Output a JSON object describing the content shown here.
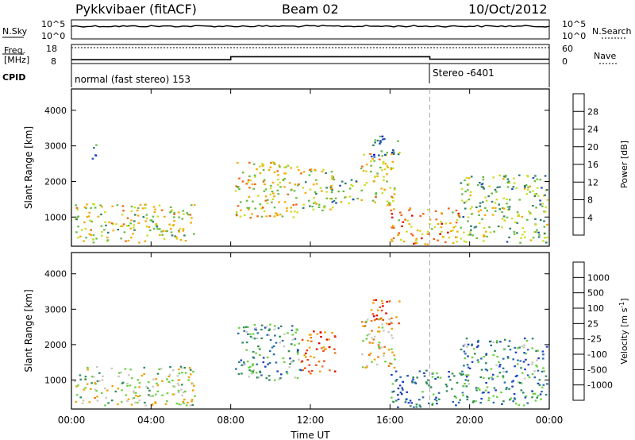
{
  "header": {
    "station": "Pykkvibaer (fitACF)",
    "beam": "Beam 02",
    "date": "10/Oct/2012"
  },
  "aux": {
    "nsky_label": "N.Sky",
    "nsearch_label": "N.Search",
    "freq_label_line1": "Freq.",
    "freq_label_line2": "[MHz]",
    "nave_label": "Nave",
    "cpid_label": "CPID",
    "noise_ticks": [
      "10^5",
      "10^0"
    ],
    "freq_ticks": [
      "18",
      "8"
    ],
    "nave_ticks": [
      "60",
      "0"
    ],
    "cpid_segments": [
      {
        "label": "normal (fast stereo) 153",
        "start_hour": 0
      },
      {
        "label": "Stereo -6401",
        "start_hour": 18
      }
    ],
    "freq_steps_mhz": [
      {
        "from": 0,
        "to": 8,
        "value": 10.0
      },
      {
        "from": 8,
        "to": 18,
        "value": 11.6
      },
      {
        "from": 18,
        "to": 24,
        "value": 10.3
      }
    ],
    "nave_dotted_level": 50
  },
  "chart_data": [
    {
      "type": "heatmap",
      "parameter": "Power",
      "ylabel": "Slant Range [km]",
      "xlabel": "Time UT",
      "x_ticks": [
        "00:00",
        "04:00",
        "08:00",
        "12:00",
        "16:00",
        "20:00",
        "00:00"
      ],
      "x_range_hours": [
        0,
        24
      ],
      "y_ticks": [
        "4000",
        "3000",
        "2000",
        "1000"
      ],
      "y_tick_values": [
        4000,
        3000,
        2000,
        1000
      ],
      "ylim": [
        180,
        4600
      ],
      "colorbar_label": "Power [dB]",
      "colorbar_ticks": [
        "28",
        "24",
        "20",
        "16",
        "12",
        "8",
        "4"
      ],
      "colorbar_colors": [
        "#0000ff",
        "#1f4fb4",
        "#2e7d6a",
        "#66bb44",
        "#ccdd22",
        "#f5a800",
        "#f06010",
        "#e00000"
      ],
      "scatter_regions": [
        {
          "t": [
            0.1,
            6.2
          ],
          "r": [
            300,
            1400
          ],
          "level": 0.55
        },
        {
          "t": [
            1.0,
            1.3
          ],
          "r": [
            2500,
            3100
          ],
          "level": 0.2
        },
        {
          "t": [
            8.2,
            11.5
          ],
          "r": [
            1000,
            2600
          ],
          "level": 0.6
        },
        {
          "t": [
            11.5,
            13.2
          ],
          "r": [
            1200,
            2400
          ],
          "level": 0.55
        },
        {
          "t": [
            13.0,
            14.4
          ],
          "r": [
            1400,
            2200
          ],
          "level": 0.45
        },
        {
          "t": [
            14.5,
            16.2
          ],
          "r": [
            1300,
            2800
          ],
          "level": 0.6
        },
        {
          "t": [
            15.0,
            16.5
          ],
          "r": [
            2600,
            3300
          ],
          "level": 0.3
        },
        {
          "t": [
            16.0,
            19.5
          ],
          "r": [
            250,
            1300
          ],
          "level": 0.7
        },
        {
          "t": [
            19.5,
            23.9
          ],
          "r": [
            300,
            2200
          ],
          "level": 0.45
        }
      ]
    },
    {
      "type": "heatmap",
      "parameter": "Velocity",
      "ylabel": "Slant Range [km]",
      "xlabel": "Time UT",
      "x_ticks": [
        "00:00",
        "04:00",
        "08:00",
        "12:00",
        "16:00",
        "20:00",
        "00:00"
      ],
      "x_range_hours": [
        0,
        24
      ],
      "y_ticks": [
        "4000",
        "3000",
        "2000",
        "1000"
      ],
      "y_tick_values": [
        4000,
        3000,
        2000,
        1000
      ],
      "ylim": [
        180,
        4600
      ],
      "colorbar_label": "Velocity [m s",
      "colorbar_label_sup": "-1",
      "colorbar_label_end": "]",
      "colorbar_ticks": [
        "1000",
        "500",
        "100",
        "25",
        "-25",
        "-100",
        "-500",
        "-1000"
      ],
      "colorbar_colors": [
        "#1a3ec8",
        "#2a6aa8",
        "#2e8a5a",
        "#6ad040",
        "#c8c8c0",
        "#f0a000",
        "#f07010",
        "#f04010",
        "#e00000"
      ],
      "scatter_regions": [
        {
          "t": [
            0.1,
            6.2
          ],
          "r": [
            300,
            1400
          ],
          "level": 0.45
        },
        {
          "t": [
            8.2,
            11.5
          ],
          "r": [
            1000,
            2600
          ],
          "level": 0.3
        },
        {
          "t": [
            11.5,
            13.2
          ],
          "r": [
            1200,
            2400
          ],
          "level": 0.75
        },
        {
          "t": [
            14.5,
            16.2
          ],
          "r": [
            1300,
            2800
          ],
          "level": 0.55
        },
        {
          "t": [
            15.0,
            16.5
          ],
          "r": [
            2600,
            3300
          ],
          "level": 0.8
        },
        {
          "t": [
            16.0,
            19.5
          ],
          "r": [
            250,
            1300
          ],
          "level": 0.2
        },
        {
          "t": [
            19.5,
            23.9
          ],
          "r": [
            300,
            2200
          ],
          "level": 0.25
        }
      ]
    }
  ]
}
